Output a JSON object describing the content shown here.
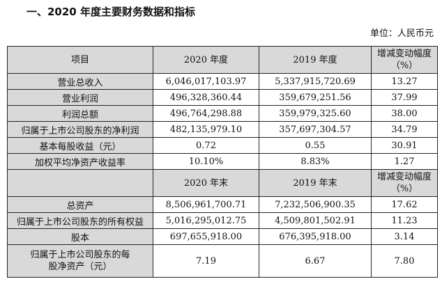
{
  "title": "一、2020 年度主要财务数据和指标",
  "unit": "单位：人民币元",
  "header1": [
    "项目",
    "2020 年度",
    "2019 年度",
    "增减变动幅度（%）"
  ],
  "rows1": [
    [
      "营业总收入",
      "6,046,017,103.97",
      "5,337,915,720.69",
      "13.27"
    ],
    [
      "营业利润",
      "496,328,360.44",
      "359,679,251.56",
      "37.99"
    ],
    [
      "利润总额",
      "496,764,298.88",
      "359,979,325.60",
      "38.00"
    ],
    [
      "归属于上市公司股东的净利润",
      "482,135,979.10",
      "357,697,304.57",
      "34.79"
    ],
    [
      "基本每股收益（元）",
      "0.72",
      "0.55",
      "30.91"
    ],
    [
      "加权平均净资产收益率",
      "10.10%",
      "8.83%",
      "1.27"
    ]
  ],
  "header2": [
    "",
    "2020 年末",
    "2019 年末",
    "增减变动幅度（%）"
  ],
  "rows2": [
    [
      "总资产",
      "8,506,961,700.71",
      "7,232,506,900.35",
      "17.62"
    ],
    [
      "归属于上市公司股东的所有权益",
      "5,016,295,012.75",
      "4,509,801,502.91",
      "11.23"
    ],
    [
      "股本",
      "697,655,918.00",
      "676,395,918.00",
      "3.14"
    ],
    [
      "归属于上市公司股东的每股净资产（元）",
      "7.19",
      "6.67",
      "7.80"
    ]
  ]
}
